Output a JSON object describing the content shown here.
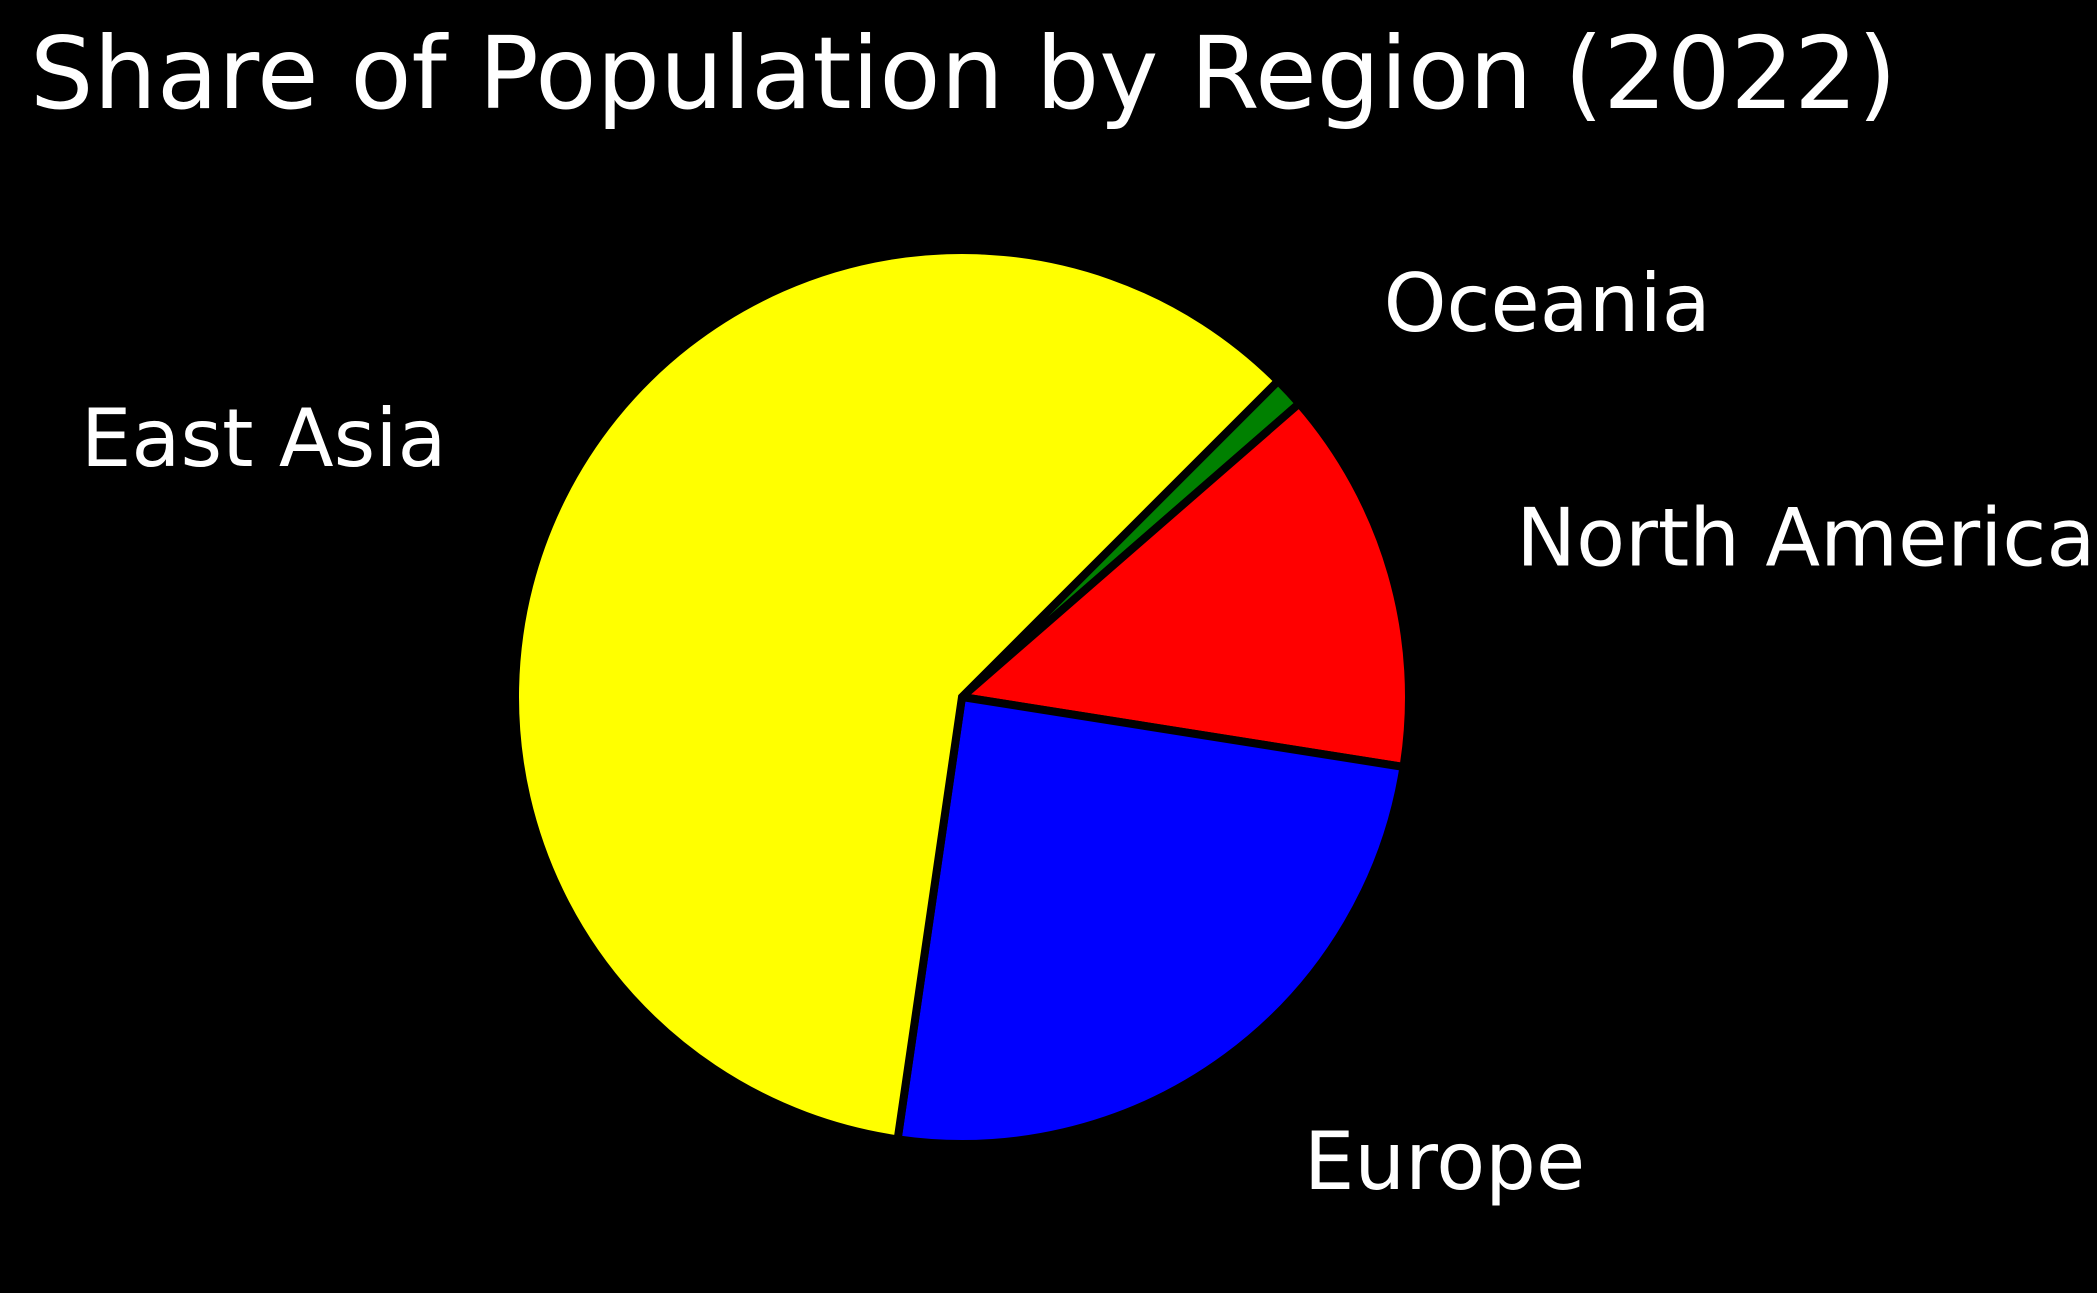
{
  "chart_data": {
    "type": "pie",
    "title": "Share of Population by Region (2022)",
    "labels": [
      "Oceania",
      "North America",
      "Europe",
      "East Asia"
    ],
    "values": [
      1.1,
      13.9,
      24.8,
      60.2
    ],
    "unit": "%",
    "start_angle_deg": 45,
    "direction": "clockwise",
    "colors": [
      "#008000",
      "#ff0000",
      "#0000ff",
      "#ffff00"
    ],
    "edge_color": "#000000",
    "background": "#000000",
    "text_color": "#ffffff"
  }
}
